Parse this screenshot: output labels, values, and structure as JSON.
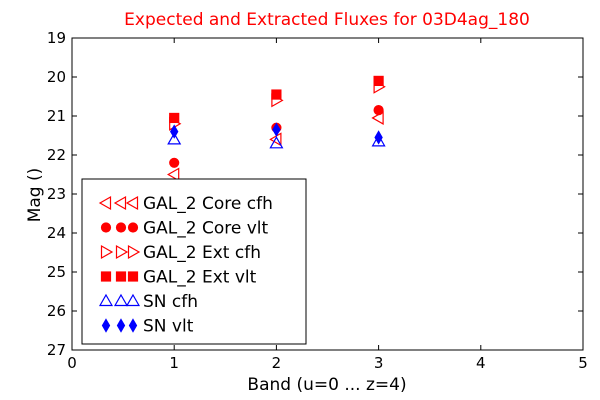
{
  "chart_data": {
    "type": "scatter",
    "title": "Expected and Extracted Fluxes for 03D4ag_180",
    "xlabel": "Band (u=0 ... z=4)",
    "ylabel": "Mag ()",
    "xlim": [
      0,
      5
    ],
    "ylim": [
      27,
      19
    ],
    "y_inverted": true,
    "x_ticks": [
      "0",
      "1",
      "2",
      "3",
      "4",
      "5"
    ],
    "y_ticks": [
      "19",
      "20",
      "21",
      "22",
      "23",
      "24",
      "25",
      "26",
      "27"
    ],
    "grid": false,
    "legend_position": "lower-left",
    "title_color": "#ff0000",
    "series": [
      {
        "name": "GAL_2 Core cfh",
        "marker": "triangle-left",
        "filled": false,
        "color": "#ff0000",
        "x": [
          1,
          2,
          3
        ],
        "y": [
          22.5,
          21.6,
          21.05
        ]
      },
      {
        "name": "GAL_2 Core vlt",
        "marker": "circle",
        "filled": true,
        "color": "#ff0000",
        "x": [
          1,
          2,
          3
        ],
        "y": [
          22.2,
          21.3,
          20.85
        ]
      },
      {
        "name": "GAL_2 Ext cfh",
        "marker": "triangle-right",
        "filled": false,
        "color": "#ff0000",
        "x": [
          1,
          2,
          3
        ],
        "y": [
          21.2,
          20.6,
          20.25
        ]
      },
      {
        "name": "GAL_2 Ext vlt",
        "marker": "square",
        "filled": true,
        "color": "#ff0000",
        "x": [
          1,
          2,
          3
        ],
        "y": [
          21.05,
          20.45,
          20.1
        ]
      },
      {
        "name": "SN cfh",
        "marker": "triangle-up",
        "filled": false,
        "color": "#0000ff",
        "x": [
          1,
          2,
          3
        ],
        "y": [
          21.6,
          21.7,
          21.65
        ]
      },
      {
        "name": "SN vlt",
        "marker": "diamond",
        "filled": true,
        "color": "#0000ff",
        "x": [
          1,
          2,
          3
        ],
        "y": [
          21.4,
          21.35,
          21.55
        ]
      }
    ]
  }
}
